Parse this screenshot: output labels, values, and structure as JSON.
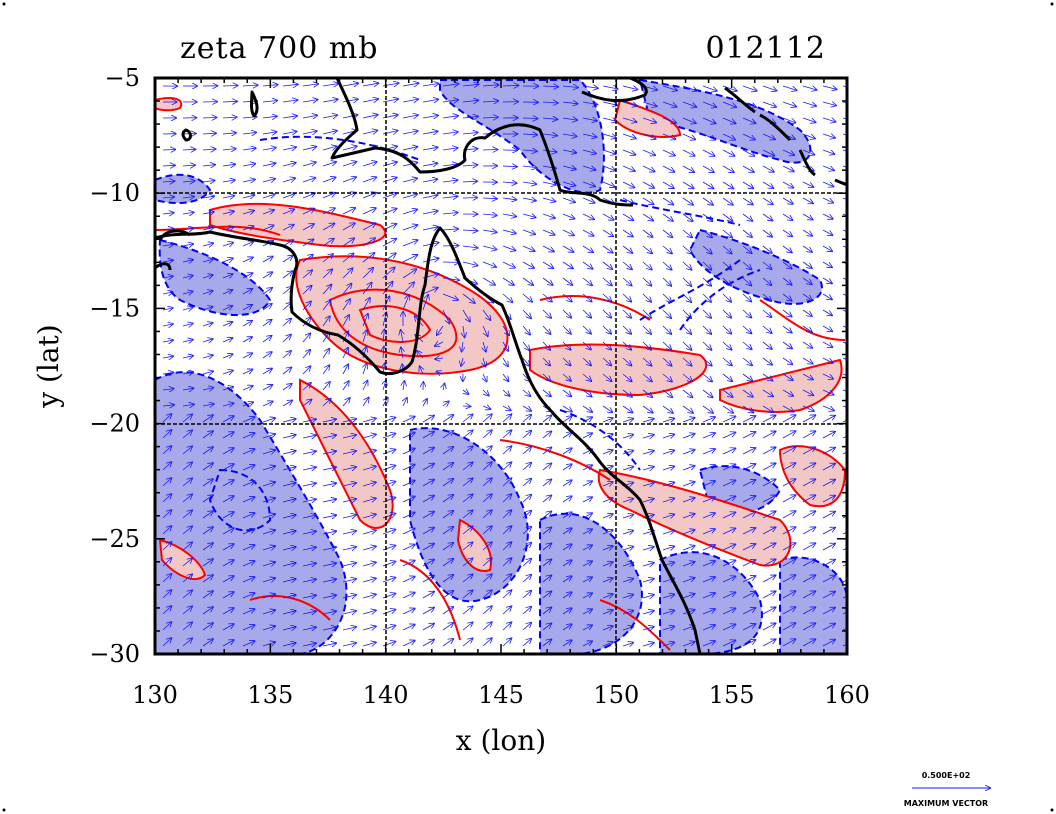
{
  "title_left": "zeta 700 mb",
  "title_right": "012112",
  "chart_data": {
    "type": "map",
    "field": "zeta",
    "level": "700 mb",
    "x_label": "x (lon)",
    "y_label": "y (lat)",
    "x_ticks": [
      130,
      135,
      140,
      145,
      150,
      155,
      160
    ],
    "y_ticks": [
      -5,
      -10,
      -15,
      -20,
      -25,
      -30
    ],
    "x_range": [
      130,
      160
    ],
    "y_range": [
      -30,
      -5
    ],
    "grid_lines_x": [
      140,
      150
    ],
    "grid_lines_y": [
      -10,
      -20
    ],
    "colors": {
      "positive_contour": "#ff0000",
      "positive_fill": "#f4c7c7",
      "negative_contour": "#0000ff",
      "negative_fill": "#a7a9ea",
      "vectors": "#1a1aff",
      "coastline": "#000000"
    },
    "vector_legend": {
      "value_label": "0.500E+02",
      "caption": "MAXIMUM VECTOR"
    }
  }
}
